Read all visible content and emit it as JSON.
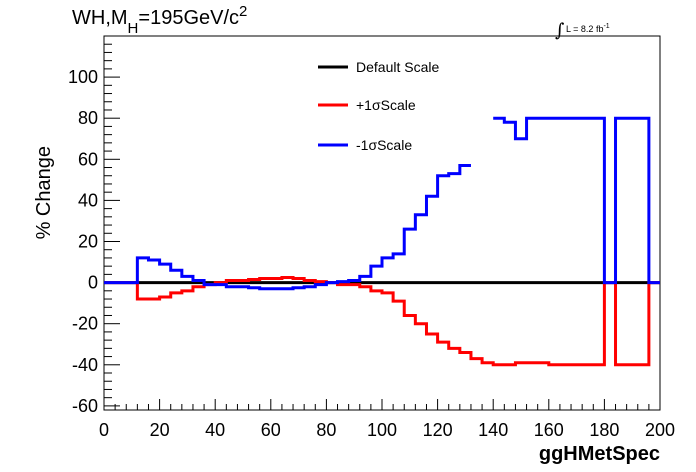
{
  "chart_data": {
    "type": "line",
    "title": "WH,M_H=195GeV/c^2",
    "title_parts": {
      "main": "WH,M",
      "sub": "H",
      "rest": "=195GeV/c",
      "sup": "2"
    },
    "luminosity": {
      "symbol": "∫",
      "text": "L = 8.2 fb",
      "sup": "-1"
    },
    "xlabel": "ggHMetSpec",
    "ylabel": "% Change",
    "xlim": [
      0,
      200
    ],
    "ylim": [
      -62,
      120
    ],
    "xticks": [
      0,
      20,
      40,
      60,
      80,
      100,
      120,
      140,
      160,
      180,
      200
    ],
    "yticks": [
      -60,
      -40,
      -20,
      0,
      20,
      40,
      60,
      80,
      100
    ],
    "legend_position": "top-center",
    "legend": [
      {
        "label": "Default Scale",
        "color": "#000000"
      },
      {
        "label": "+1σScale",
        "color": "#ff0000"
      },
      {
        "label": "-1σScale",
        "color": "#0000ff"
      }
    ],
    "series": [
      {
        "name": "Default Scale",
        "color": "#000000",
        "step": true,
        "x": [
          0,
          200
        ],
        "values": [
          0,
          0
        ]
      },
      {
        "name": "+1σScale",
        "color": "#ff0000",
        "step": true,
        "x": [
          0,
          12,
          16,
          20,
          24,
          28,
          32,
          36,
          40,
          44,
          48,
          52,
          56,
          60,
          64,
          68,
          72,
          76,
          80,
          84,
          88,
          92,
          96,
          100,
          104,
          108,
          112,
          116,
          120,
          124,
          128,
          132,
          136,
          140,
          144,
          148,
          152,
          156,
          160,
          164,
          168,
          172,
          176,
          180,
          184,
          188,
          192,
          196,
          200
        ],
        "values": [
          0,
          -8,
          -8,
          -7,
          -5,
          -4,
          -2,
          -1,
          0,
          1,
          1,
          1.5,
          2,
          2,
          2.5,
          2,
          1,
          0.5,
          0,
          -1,
          -1,
          -2,
          -4,
          -5,
          -9,
          -16,
          -20,
          -25,
          -29,
          -32,
          -34,
          -37,
          -39,
          -40,
          -40,
          -39,
          -39,
          -39,
          -40,
          -40,
          -40,
          -40,
          -40,
          0,
          -40,
          -40,
          -40,
          0,
          0
        ]
      },
      {
        "name": "-1σScale",
        "color": "#0000ff",
        "step": true,
        "x": [
          0,
          12,
          16,
          20,
          24,
          28,
          32,
          36,
          40,
          44,
          48,
          52,
          56,
          60,
          64,
          68,
          72,
          76,
          80,
          84,
          88,
          92,
          96,
          100,
          104,
          108,
          112,
          116,
          120,
          124,
          128,
          132,
          136,
          140,
          144,
          148,
          152,
          156,
          160,
          164,
          168,
          172,
          176,
          180,
          184,
          188,
          192,
          196,
          200
        ],
        "values": [
          0,
          12,
          11,
          9,
          6,
          3,
          1,
          -1,
          -1,
          -2,
          -2,
          -2.5,
          -3,
          -3,
          -3,
          -2.5,
          -2,
          -1,
          0,
          0.5,
          1,
          3,
          8,
          12,
          14,
          26,
          33,
          42,
          52,
          53,
          57,
          null,
          null,
          80,
          78,
          70,
          80,
          80,
          80,
          80,
          80,
          80,
          80,
          0,
          80,
          80,
          80,
          0,
          0
        ]
      }
    ]
  }
}
